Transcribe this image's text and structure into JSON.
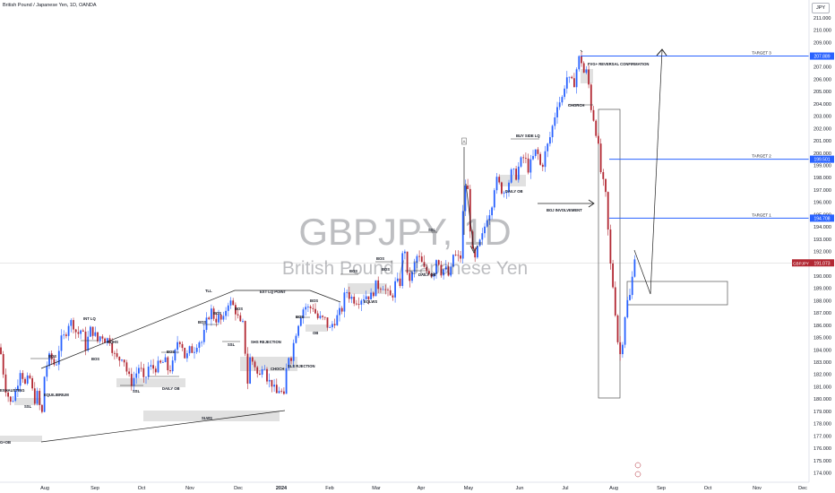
{
  "header": {
    "symbol_title": "British Pound / Japanese Yen, 1D, OANDA",
    "currency": "JPY"
  },
  "watermark": {
    "ticker": "GBPJPY, 1D",
    "name": "British Pound / Japanese Yen"
  },
  "colors": {
    "up": "#2962ff",
    "down": "#b22833",
    "target_line": "#2962ff",
    "price_line": "#cfcfcf",
    "annotation": "#131722",
    "zone_fill": "#d9d9d9",
    "price_badge": "#b22833",
    "target_badge": "#2962ff"
  },
  "chart_data": {
    "type": "candlestick",
    "title": "British Pound / Japanese Yen, 1D, OANDA",
    "ylim": [
      173,
      212
    ],
    "y_ticks": [
      174,
      175,
      176,
      177,
      178,
      179,
      180,
      181,
      182,
      183,
      184,
      185,
      186,
      187,
      188,
      189,
      190,
      191,
      192,
      193,
      194,
      195,
      196,
      197,
      198,
      199,
      200,
      201,
      202,
      203,
      204,
      205,
      206,
      207,
      208,
      209,
      210,
      211
    ],
    "x_ticks": [
      "Jul",
      "Aug",
      "Sep",
      "Oct",
      "Nov",
      "Dec",
      "2024",
      "Feb",
      "Mar",
      "Apr",
      "May",
      "Jun",
      "Jul",
      "Aug",
      "Sep",
      "Oct",
      "Nov",
      "Dec"
    ],
    "current_price": "191.073",
    "targets": [
      {
        "label": "TARGET 3",
        "price": "207.889"
      },
      {
        "label": "TARGET 2",
        "price": "199.501"
      },
      {
        "label": "TARGET 1",
        "price": "194.708"
      }
    ],
    "price_path": [
      [
        0,
        184.2
      ],
      [
        6,
        181.0
      ],
      [
        12,
        179.6
      ],
      [
        18,
        180.8
      ],
      [
        23,
        182.6
      ],
      [
        28,
        181.1
      ],
      [
        33,
        181.8
      ],
      [
        38,
        179.9
      ],
      [
        43,
        180.5
      ],
      [
        46,
        177.8
      ],
      [
        50,
        182.3
      ],
      [
        56,
        183.5
      ],
      [
        62,
        182.6
      ],
      [
        67,
        184.6
      ],
      [
        72,
        185.1
      ],
      [
        77,
        186.3
      ],
      [
        82,
        186.1
      ],
      [
        86,
        185.2
      ],
      [
        91,
        185.7
      ],
      [
        96,
        184.1
      ],
      [
        100,
        185.6
      ],
      [
        104,
        185.5
      ],
      [
        109,
        184.7
      ],
      [
        113,
        185.3
      ],
      [
        118,
        184.8
      ],
      [
        123,
        184.9
      ],
      [
        127,
        183.6
      ],
      [
        132,
        183.1
      ],
      [
        137,
        183.7
      ],
      [
        142,
        182.1
      ],
      [
        146,
        181.3
      ],
      [
        151,
        181.9
      ],
      [
        156,
        182.8
      ],
      [
        161,
        181.1
      ],
      [
        165,
        182.6
      ],
      [
        170,
        182.5
      ],
      [
        175,
        182.6
      ],
      [
        179,
        182.8
      ],
      [
        184,
        183.1
      ],
      [
        188,
        182.3
      ],
      [
        193,
        182.8
      ],
      [
        198,
        184.7
      ],
      [
        202,
        184.9
      ],
      [
        207,
        183.2
      ],
      [
        212,
        184.0
      ],
      [
        216,
        184.0
      ],
      [
        221,
        184.8
      ],
      [
        226,
        184.6
      ],
      [
        230,
        186.1
      ],
      [
        235,
        187.3
      ],
      [
        240,
        186.5
      ],
      [
        244,
        186.6
      ],
      [
        249,
        186.2
      ],
      [
        254,
        188.0
      ],
      [
        259,
        187.7
      ],
      [
        263,
        187.2
      ],
      [
        268,
        186.0
      ],
      [
        272,
        186.0
      ],
      [
        276,
        181.1
      ],
      [
        279,
        183.3
      ],
      [
        284,
        182.9
      ],
      [
        289,
        181.5
      ],
      [
        294,
        183.4
      ],
      [
        299,
        181.4
      ],
      [
        303,
        181.4
      ],
      [
        308,
        180.3
      ],
      [
        312,
        180.9
      ],
      [
        317,
        180.0
      ],
      [
        321,
        183.6
      ],
      [
        325,
        183.5
      ],
      [
        330,
        185.4
      ],
      [
        335,
        186.8
      ],
      [
        340,
        187.6
      ],
      [
        345,
        187.3
      ],
      [
        349,
        187.6
      ],
      [
        354,
        186.6
      ],
      [
        358,
        186.5
      ],
      [
        363,
        186.4
      ],
      [
        368,
        185.6
      ],
      [
        372,
        186.3
      ],
      [
        377,
        186.7
      ],
      [
        382,
        187.4
      ],
      [
        386,
        188.9
      ],
      [
        391,
        188.3
      ],
      [
        396,
        188.1
      ],
      [
        400,
        188.1
      ],
      [
        405,
        188.3
      ],
      [
        410,
        188.5
      ],
      [
        414,
        188.3
      ],
      [
        419,
        189.2
      ],
      [
        423,
        189.2
      ],
      [
        428,
        189.3
      ],
      [
        432,
        188.5
      ],
      [
        437,
        188.2
      ],
      [
        442,
        189.6
      ],
      [
        446,
        189.1
      ],
      [
        451,
        193.0
      ],
      [
        455,
        189.5
      ],
      [
        460,
        190.1
      ],
      [
        465,
        191.6
      ],
      [
        469,
        191.3
      ],
      [
        474,
        190.4
      ],
      [
        479,
        190.5
      ],
      [
        483,
        190.0
      ],
      [
        488,
        191.8
      ],
      [
        492,
        190.4
      ],
      [
        497,
        190.6
      ],
      [
        502,
        189.8
      ],
      [
        506,
        191.8
      ],
      [
        511,
        191.4
      ],
      [
        515,
        191.6
      ],
      [
        518,
        197.7
      ],
      [
        522,
        197.0
      ],
      [
        526,
        192.7
      ],
      [
        529,
        190.9
      ],
      [
        534,
        192.4
      ],
      [
        539,
        193.3
      ],
      [
        543,
        194.8
      ],
      [
        548,
        195.5
      ],
      [
        553,
        197.9
      ],
      [
        557,
        197.4
      ],
      [
        562,
        196.8
      ],
      [
        567,
        197.5
      ],
      [
        571,
        198.4
      ],
      [
        576,
        198.2
      ],
      [
        580,
        199.1
      ],
      [
        585,
        199.7
      ],
      [
        590,
        198.7
      ],
      [
        595,
        199.6
      ],
      [
        599,
        200.3
      ],
      [
        604,
        198.7
      ],
      [
        609,
        200.1
      ],
      [
        613,
        201.0
      ],
      [
        618,
        202.6
      ],
      [
        622,
        204.1
      ],
      [
        627,
        204.3
      ],
      [
        632,
        206.3
      ],
      [
        637,
        205.6
      ],
      [
        641,
        205.8
      ],
      [
        645,
        207.4
      ],
      [
        648,
        208.0
      ],
      [
        651,
        206.5
      ],
      [
        654,
        206.7
      ],
      [
        657,
        205.6
      ],
      [
        660,
        203.6
      ],
      [
        663,
        202.7
      ],
      [
        666,
        201.5
      ],
      [
        669,
        199.7
      ],
      [
        672,
        197.4
      ],
      [
        675,
        197.5
      ],
      [
        678,
        194.4
      ],
      [
        681,
        191.1
      ],
      [
        684,
        189.3
      ],
      [
        687,
        187.0
      ],
      [
        690,
        184.3
      ],
      [
        693,
        183.4
      ],
      [
        696,
        185.7
      ],
      [
        699,
        187.9
      ],
      [
        702,
        187.9
      ],
      [
        705,
        189.2
      ],
      [
        708,
        191.9
      ],
      [
        711,
        191.0
      ]
    ]
  },
  "annotations": {
    "exhausting": "EXHAUSTING",
    "equilibrium": "EQUILIBRIUM",
    "int_lq": "INT LQ",
    "eqhs": "EQHS",
    "bos": "BOS",
    "ssl": "SSL",
    "daily_ob": "DAILY OB",
    "tll": "TLL",
    "ext_lq_point": "EXT LQ POINT",
    "shs_rejection": "SHS REJECTION",
    "choch": "CHOCH",
    "sls_rjection": "SLS RJECTION",
    "ob": "OB",
    "eqlws": "EQLWS",
    "slws": "SLWS",
    "ob_left": "G+OB",
    "buy_side_lq": "BUY SIDE LQ",
    "a_marker": "A",
    "boj_involvement": "BOJ INVOLVEMENT",
    "fvg_reversal": "FVG+ REVERSAL CONFIRMATION",
    "chorch": "CHORCH"
  }
}
